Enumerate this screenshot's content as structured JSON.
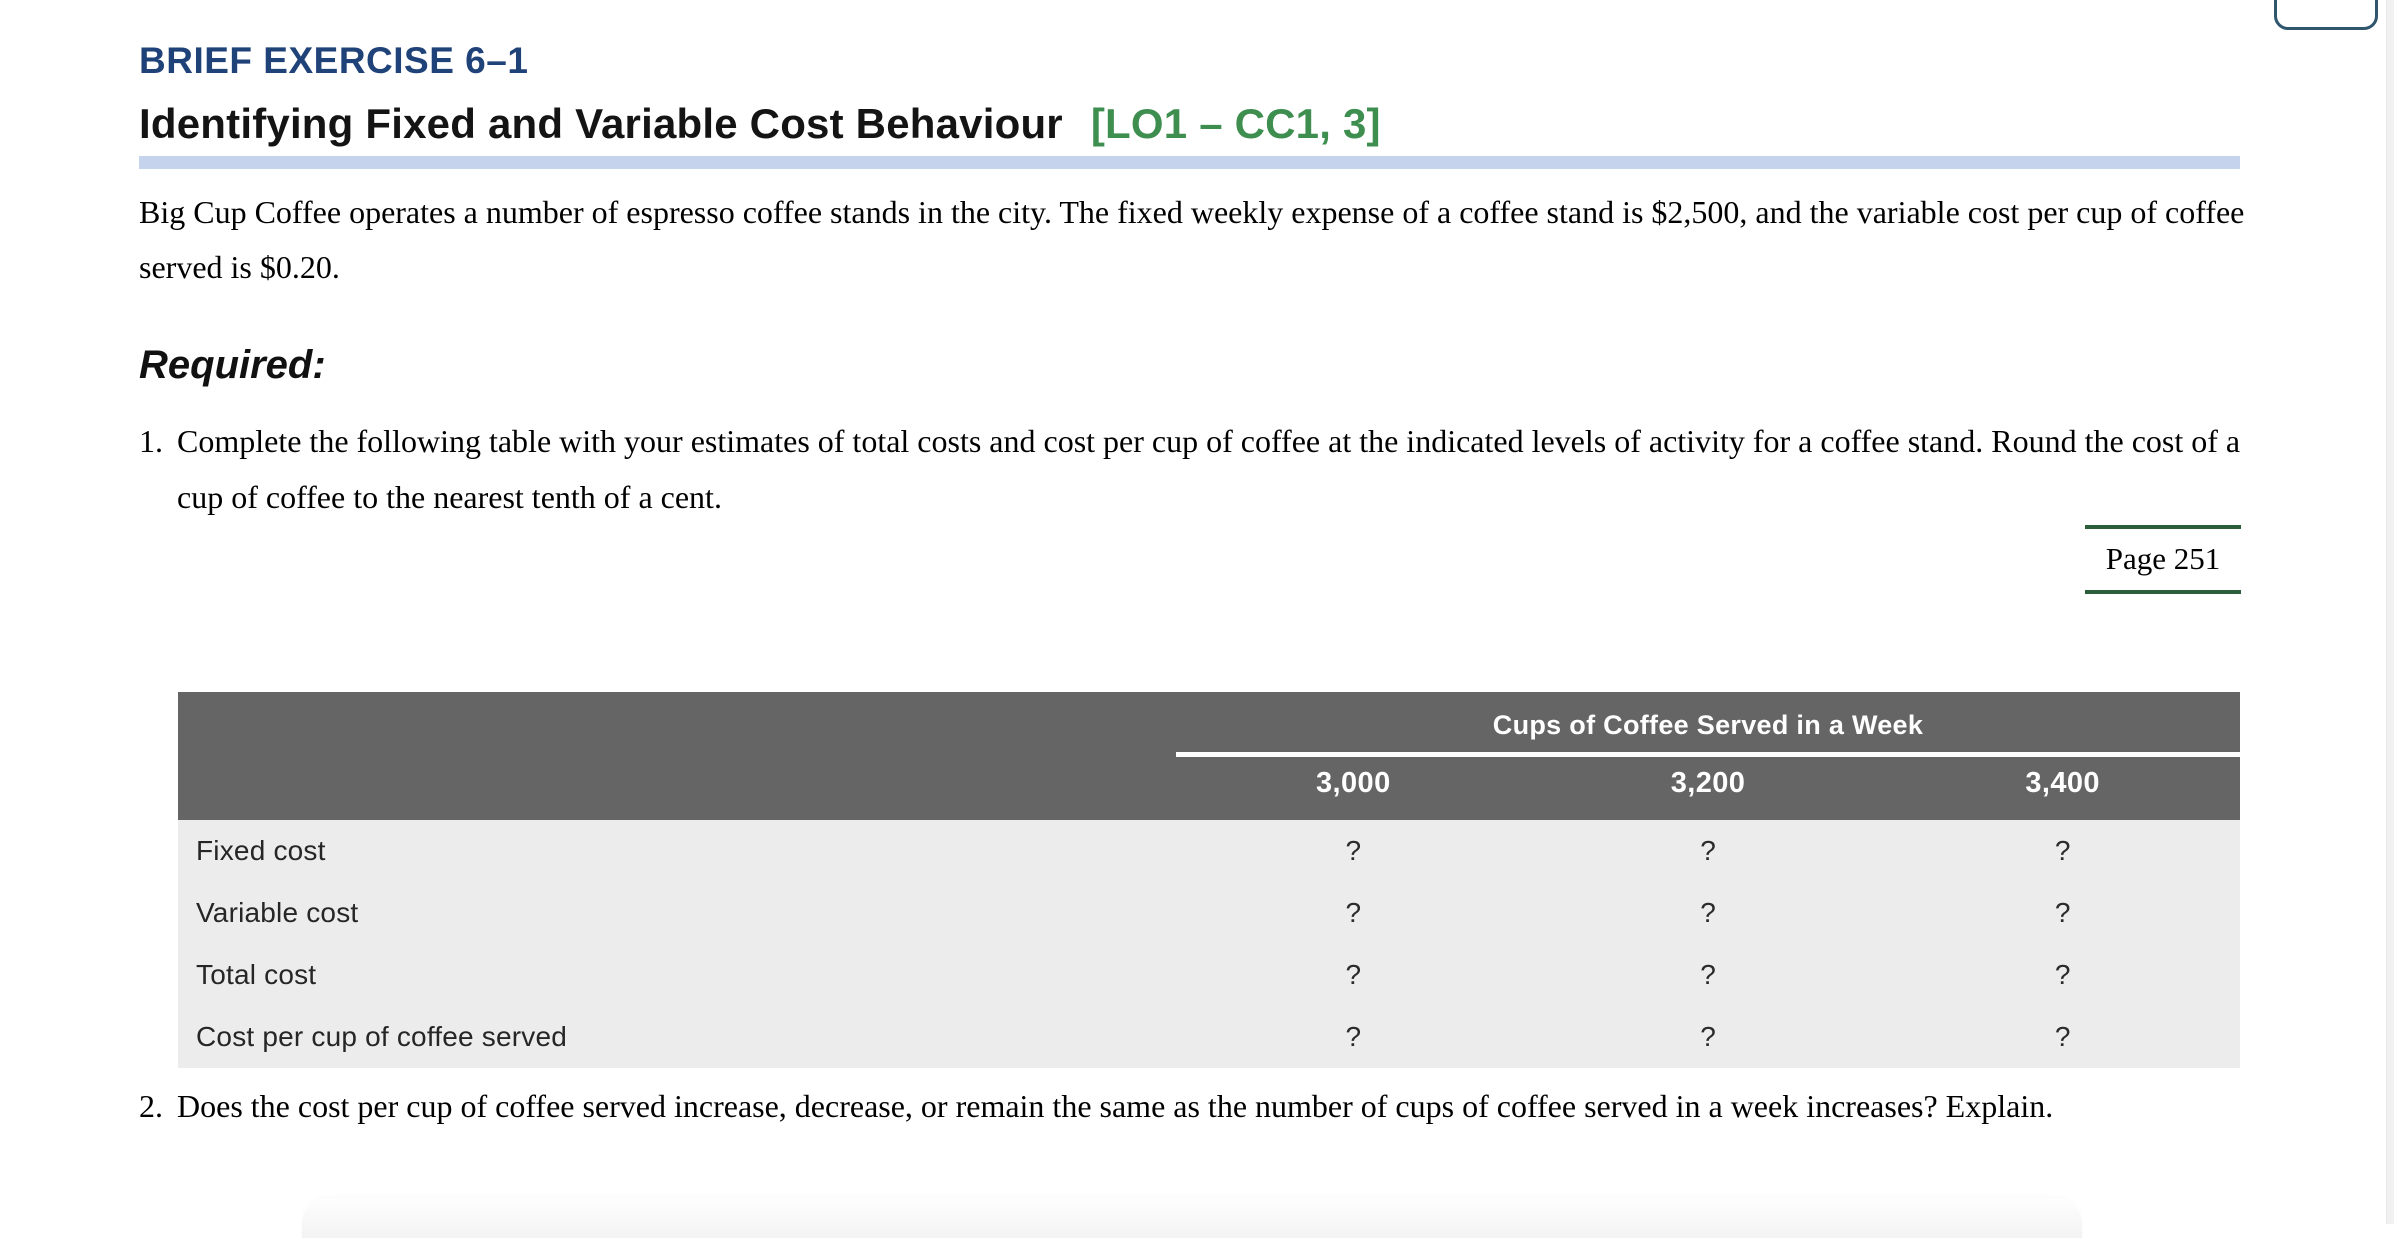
{
  "header": {
    "exercise_label": "BRIEF EXERCISE 6–1",
    "title": "Identifying Fixed and Variable Cost Behaviour",
    "lo_tag": "[LO1 – CC1, 3]"
  },
  "intro": {
    "text": "Big Cup Coffee operates a number of espresso coffee stands in the city. The fixed weekly expense of a coffee stand is $2,500, and the variable cost per cup of coffee served is $0.20."
  },
  "required": {
    "label": "Required:"
  },
  "items": [
    {
      "number": "1.",
      "text": "Complete the following table with your estimates of total costs and cost per cup of coffee at the indicated levels of activity for a coffee stand. Round the cost of a cup of coffee to the nearest tenth of a cent."
    },
    {
      "number": "2.",
      "text": "Does the cost per cup of coffee served increase, decrease, or remain the same as the number of cups of coffee served in a week increases? Explain."
    }
  ],
  "page_ref": {
    "label": "Page 251"
  },
  "table": {
    "group_header": "Cups of Coffee Served in a Week",
    "columns": [
      "3,000",
      "3,200",
      "3,400"
    ],
    "rows": [
      {
        "label": "Fixed cost",
        "values": [
          "?",
          "?",
          "?"
        ]
      },
      {
        "label": "Variable cost",
        "values": [
          "?",
          "?",
          "?"
        ]
      },
      {
        "label": "Total cost",
        "values": [
          "?",
          "?",
          "?"
        ]
      },
      {
        "label": "Cost per cup of coffee served",
        "values": [
          "?",
          "?",
          "?"
        ]
      }
    ]
  },
  "colors": {
    "exercise_label_navy": "#1f4278",
    "lo_tag_green": "#3e8e50",
    "heading_divider_blue": "#c5d4ec",
    "page_ref_line_green": "#2d5e3c",
    "table_header_gray": "#656565",
    "table_body_gray": "#ececec",
    "partial_button_border": "#2f566d"
  }
}
